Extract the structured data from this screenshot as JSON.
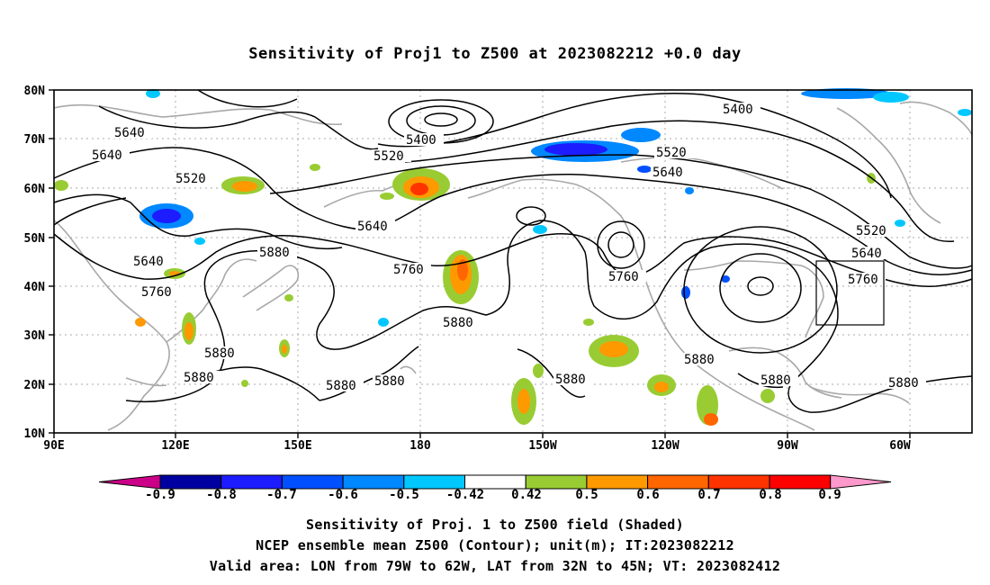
{
  "title": "Sensitivity of Proj1 to Z500 at 2023082212 +0.0 day",
  "lat_labels": [
    "80N",
    "70N",
    "60N",
    "50N",
    "40N",
    "30N",
    "20N",
    "10N"
  ],
  "lon_labels": [
    "90E",
    "120E",
    "150E",
    "180",
    "150W",
    "120W",
    "90W",
    "60W"
  ],
  "contour_labels": [
    "5400",
    "5520",
    "5640",
    "5760",
    "5880"
  ],
  "colorbar": {
    "labels": [
      "-0.9",
      "-0.8",
      "-0.7",
      "-0.6",
      "-0.5",
      "-0.42",
      "0.42",
      "0.5",
      "0.6",
      "0.7",
      "0.8",
      "0.9"
    ],
    "colors": [
      "#0000a0",
      "#1c1cff",
      "#0050ff",
      "#0088ff",
      "#00c8ff",
      "#ffffff",
      "#99cc33",
      "#ff9900",
      "#ff6600",
      "#ff3300",
      "#ff0000"
    ],
    "low_end_color": "#cc0088",
    "high_end_color": "#ff99cc"
  },
  "captions": [
    "Sensitivity of Proj. 1 to Z500 field (Shaded)",
    "NCEP ensemble mean Z500 (Contour); unit(m); IT:2023082212",
    "Valid area: LON from 79W to 62W, LAT from 32N to 45N; VT: 2023082412"
  ],
  "valid_area": {
    "lon_min": -79,
    "lon_max": -62,
    "lat_min": 32,
    "lat_max": 45
  }
}
